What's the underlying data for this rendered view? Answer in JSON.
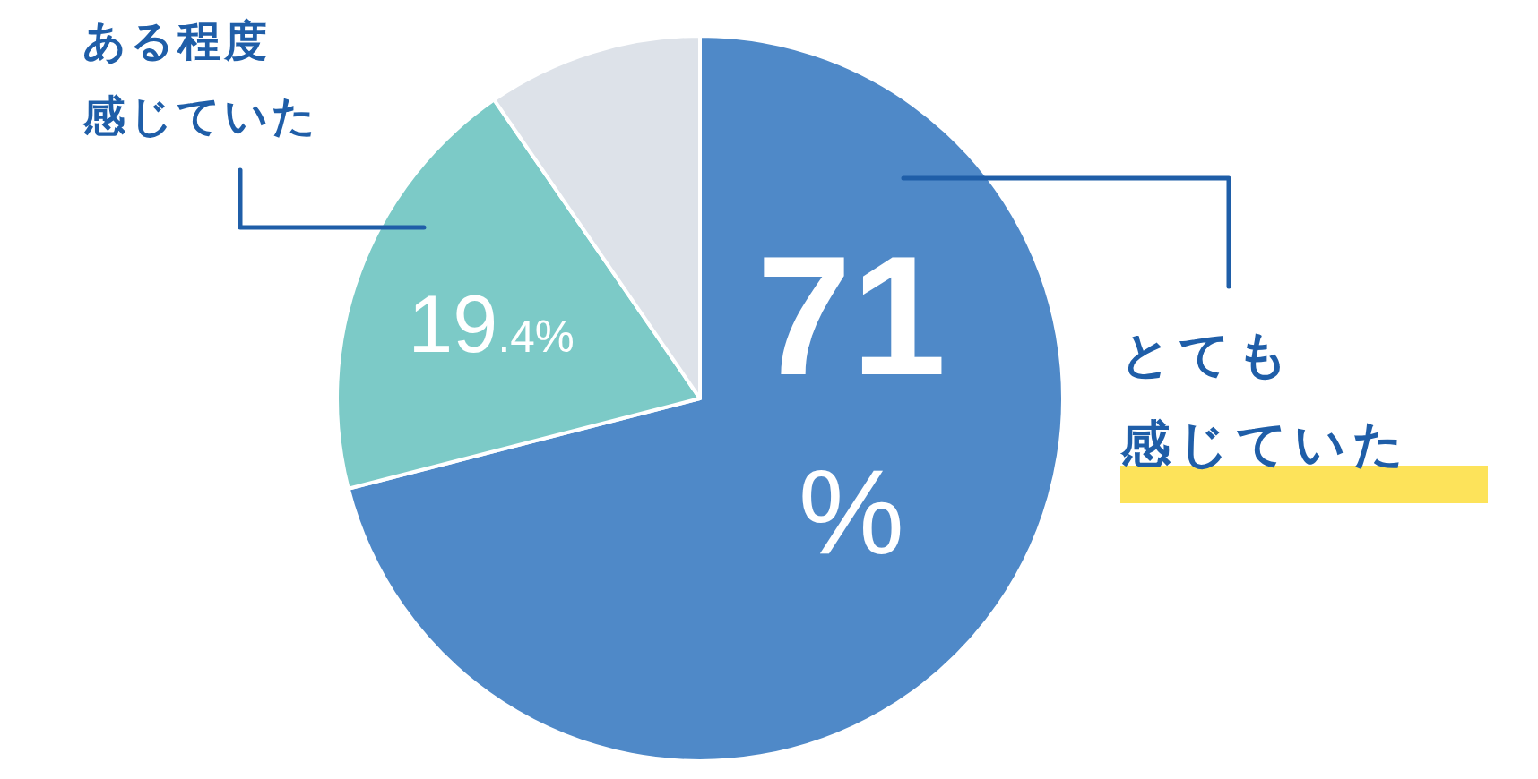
{
  "chart_data": {
    "type": "pie",
    "categories": [
      "とても感じていた",
      "ある程度感じていた",
      null
    ],
    "values": [
      71,
      19.4,
      9.6
    ],
    "colors": [
      "#4f89c8",
      "#7ccac7",
      "#dde2e9"
    ],
    "value_labels": [
      "71%",
      "19.4%",
      null
    ]
  }
}
